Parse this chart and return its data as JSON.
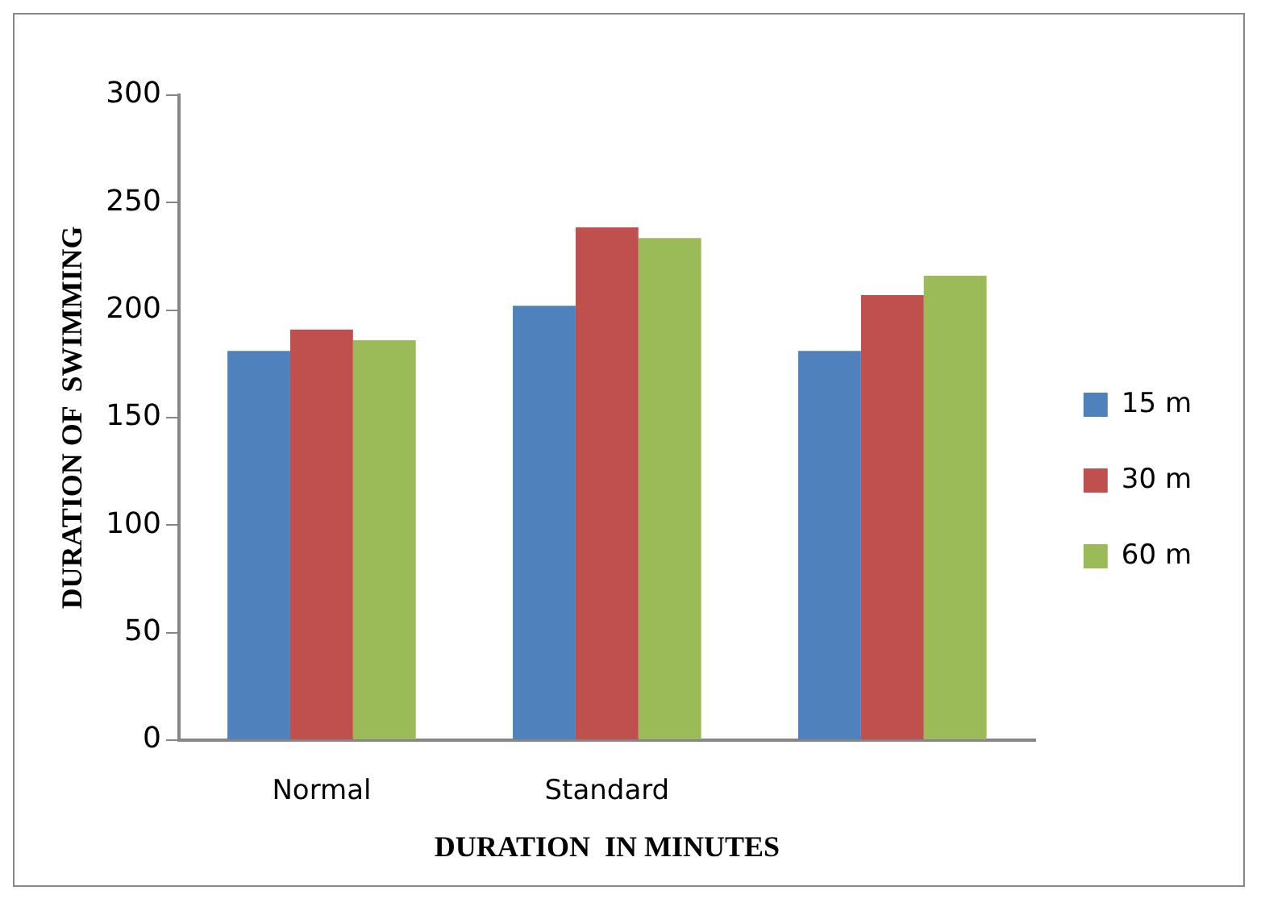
{
  "chart_data": {
    "type": "bar",
    "xlabel": "DURATION  IN MINUTES",
    "ylabel": "DURATION OF  SWIMMING",
    "categories": [
      "Normal",
      "Standard",
      null
    ],
    "series": [
      {
        "name": "15 m",
        "color": "#4f81bd",
        "values": [
          181,
          202,
          181
        ]
      },
      {
        "name": "30 m",
        "color": "#c0504d",
        "values": [
          191,
          238.5,
          207
        ]
      },
      {
        "name": "60 m",
        "color": "#9bbb59",
        "values": [
          186,
          233.5,
          216
        ]
      }
    ],
    "ylim": [
      0,
      300
    ],
    "yticks": [
      0,
      50,
      100,
      150,
      200,
      250,
      300
    ],
    "grid": false,
    "legend": "right"
  }
}
